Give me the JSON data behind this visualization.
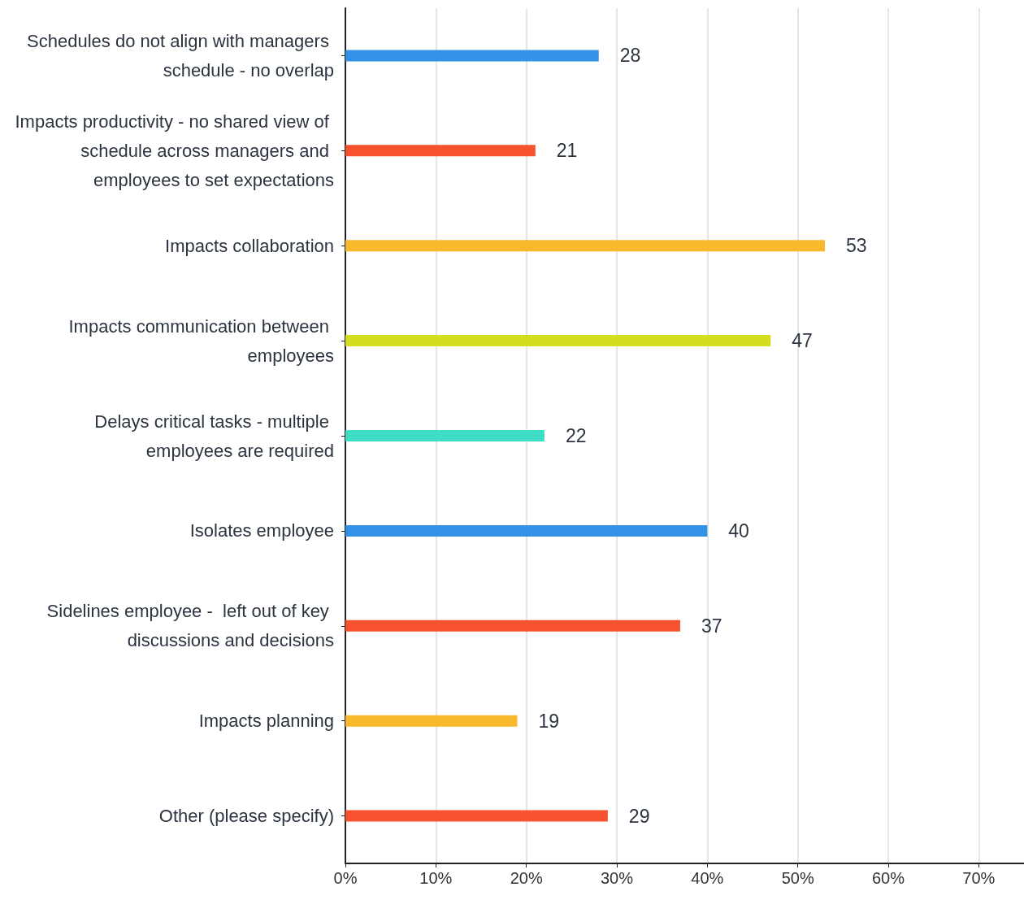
{
  "chart_data": {
    "type": "bar",
    "orientation": "horizontal",
    "categories": [
      "Schedules do not align with managers schedule - no overlap",
      "Impacts productivity - no shared view of schedule across managers and employees to set expectations",
      "Impacts collaboration",
      "Impacts communication between employees",
      "Delays critical tasks - multiple employees are required",
      "Isolates employee",
      "Sidelines employee -  left out of key discussions and decisions",
      "Impacts planning",
      "Other (please specify)"
    ],
    "values": [
      28,
      21,
      53,
      47,
      22,
      40,
      37,
      19,
      29
    ],
    "colors": [
      "#3391e6",
      "#f5522d",
      "#f7b92b",
      "#d4dd1e",
      "#3edec6",
      "#3391e6",
      "#f5522d",
      "#f7b92b",
      "#f5522d"
    ],
    "xlim": [
      0,
      75
    ],
    "xticks": [
      {
        "value": 0,
        "label": "0%"
      },
      {
        "value": 10,
        "label": "10%"
      },
      {
        "value": 20,
        "label": "20%"
      },
      {
        "value": 30,
        "label": "30%"
      },
      {
        "value": 40,
        "label": "40%"
      },
      {
        "value": 50,
        "label": "50%"
      },
      {
        "value": 60,
        "label": "60%"
      },
      {
        "value": 70,
        "label": "70%"
      }
    ],
    "grid": "x",
    "data_labels": true
  }
}
